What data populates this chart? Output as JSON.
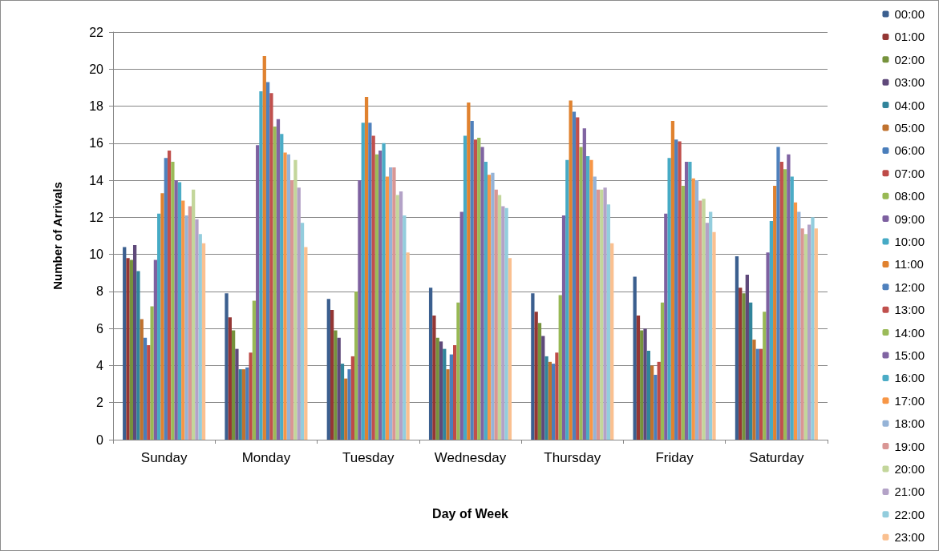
{
  "chart_data": {
    "type": "bar",
    "xlabel": "Day of Week",
    "ylabel": "Number of Arrivals",
    "categories": [
      "Sunday",
      "Monday",
      "Tuesday",
      "Wednesday",
      "Thursday",
      "Friday",
      "Saturday"
    ],
    "ylim": [
      0,
      22
    ],
    "yticks": [
      0,
      2,
      4,
      6,
      8,
      10,
      12,
      14,
      16,
      18,
      20,
      22
    ],
    "grid": "y",
    "legend": "right",
    "series": [
      {
        "name": "00:00",
        "color": "#3b5f8f",
        "values": [
          10.4,
          7.9,
          7.6,
          8.2,
          7.9,
          8.8,
          9.9
        ]
      },
      {
        "name": "01:00",
        "color": "#943634",
        "values": [
          9.8,
          6.6,
          7.0,
          6.7,
          6.9,
          6.7,
          8.2
        ]
      },
      {
        "name": "02:00",
        "color": "#76923c",
        "values": [
          9.7,
          5.9,
          5.9,
          5.5,
          6.3,
          5.9,
          7.9
        ]
      },
      {
        "name": "03:00",
        "color": "#5f497a",
        "values": [
          10.5,
          4.9,
          5.5,
          5.3,
          5.6,
          6.0,
          8.9
        ]
      },
      {
        "name": "04:00",
        "color": "#31849b",
        "values": [
          9.1,
          3.8,
          4.1,
          4.9,
          4.5,
          4.8,
          7.4
        ]
      },
      {
        "name": "05:00",
        "color": "#c0722e",
        "values": [
          6.5,
          3.8,
          3.3,
          3.8,
          4.2,
          4.0,
          5.4
        ]
      },
      {
        "name": "06:00",
        "color": "#4a7ebb",
        "values": [
          5.5,
          3.9,
          3.8,
          4.6,
          4.1,
          3.5,
          4.9
        ]
      },
      {
        "name": "07:00",
        "color": "#be4b48",
        "values": [
          5.1,
          4.7,
          4.5,
          5.1,
          4.7,
          4.2,
          4.9
        ]
      },
      {
        "name": "08:00",
        "color": "#98b954",
        "values": [
          7.2,
          7.5,
          8.0,
          7.4,
          7.8,
          7.4,
          6.9
        ]
      },
      {
        "name": "09:00",
        "color": "#7d60a0",
        "values": [
          9.7,
          15.9,
          14.0,
          12.3,
          12.1,
          12.2,
          10.1
        ]
      },
      {
        "name": "10:00",
        "color": "#46aac5",
        "values": [
          12.2,
          18.8,
          17.1,
          16.4,
          15.1,
          15.2,
          11.8
        ]
      },
      {
        "name": "11:00",
        "color": "#e0822f",
        "values": [
          13.3,
          20.7,
          18.5,
          18.2,
          18.3,
          17.2,
          13.7
        ]
      },
      {
        "name": "12:00",
        "color": "#4f81bd",
        "values": [
          15.2,
          19.3,
          17.1,
          17.2,
          17.7,
          16.2,
          15.8
        ]
      },
      {
        "name": "13:00",
        "color": "#c0504d",
        "values": [
          15.6,
          18.7,
          16.4,
          16.2,
          17.4,
          16.1,
          15.0
        ]
      },
      {
        "name": "14:00",
        "color": "#9bbb59",
        "values": [
          15.0,
          16.9,
          15.4,
          16.3,
          15.8,
          13.7,
          14.6
        ]
      },
      {
        "name": "15:00",
        "color": "#8064a2",
        "values": [
          14.0,
          17.3,
          15.6,
          15.8,
          16.8,
          15.0,
          15.4
        ]
      },
      {
        "name": "16:00",
        "color": "#4bacc6",
        "values": [
          13.9,
          16.5,
          16.0,
          15.0,
          15.3,
          15.0,
          14.2
        ]
      },
      {
        "name": "17:00",
        "color": "#f79646",
        "values": [
          12.9,
          15.5,
          14.2,
          14.3,
          15.1,
          14.1,
          12.8
        ]
      },
      {
        "name": "18:00",
        "color": "#95b3d7",
        "values": [
          12.1,
          15.4,
          14.7,
          14.4,
          14.2,
          14.0,
          12.3
        ]
      },
      {
        "name": "19:00",
        "color": "#d99694",
        "values": [
          12.6,
          14.0,
          14.7,
          13.5,
          13.5,
          12.9,
          11.4
        ]
      },
      {
        "name": "20:00",
        "color": "#c3d69b",
        "values": [
          13.5,
          15.1,
          13.2,
          13.2,
          13.5,
          13.0,
          11.1
        ]
      },
      {
        "name": "21:00",
        "color": "#b3a2c7",
        "values": [
          11.9,
          13.6,
          13.4,
          12.6,
          13.6,
          11.7,
          11.6
        ]
      },
      {
        "name": "22:00",
        "color": "#93cddd",
        "values": [
          11.1,
          11.7,
          12.1,
          12.5,
          12.7,
          12.3,
          12.0
        ]
      },
      {
        "name": "23:00",
        "color": "#fac090",
        "values": [
          10.6,
          10.4,
          10.1,
          9.8,
          10.6,
          11.2,
          11.4
        ]
      }
    ]
  }
}
